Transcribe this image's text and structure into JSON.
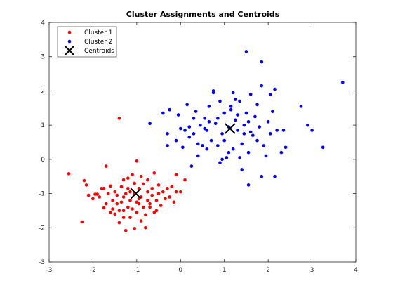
{
  "chart_data": {
    "type": "scatter",
    "title": "Cluster Assignments and Centroids",
    "xlim": [
      -3,
      4
    ],
    "ylim": [
      -3,
      4
    ],
    "x_ticks": [
      -3,
      -2,
      -1,
      0,
      1,
      2,
      3,
      4
    ],
    "y_ticks": [
      -3,
      -2,
      -1,
      0,
      1,
      2,
      3,
      4
    ],
    "grid": false,
    "legend_position": "top-left",
    "series": [
      {
        "name": "Cluster 1",
        "color": "#ff0000",
        "marker": "dot",
        "points": [
          [
            -2.55,
            -0.42
          ],
          [
            -2.25,
            -1.83
          ],
          [
            -2.2,
            -0.62
          ],
          [
            -2.15,
            -0.75
          ],
          [
            -2.1,
            -1.05
          ],
          [
            -2.0,
            -1.15
          ],
          [
            -1.9,
            -1.02
          ],
          [
            -1.85,
            -1.1
          ],
          [
            -1.8,
            -0.85
          ],
          [
            -1.75,
            -0.85
          ],
          [
            -1.7,
            -1.3
          ],
          [
            -1.7,
            -0.2
          ],
          [
            -1.65,
            -1.0
          ],
          [
            -1.6,
            -1.55
          ],
          [
            -1.55,
            -1.45
          ],
          [
            -1.5,
            -0.95
          ],
          [
            -1.5,
            -1.6
          ],
          [
            -1.45,
            -1.3
          ],
          [
            -1.4,
            -1.5
          ],
          [
            -1.4,
            -1.85
          ],
          [
            -1.35,
            -1.25
          ],
          [
            -1.3,
            -1.1
          ],
          [
            -1.3,
            -0.6
          ],
          [
            -1.3,
            -1.5
          ],
          [
            -1.25,
            -2.08
          ],
          [
            -1.2,
            -0.85
          ],
          [
            -1.2,
            -0.55
          ],
          [
            -1.15,
            -1.7
          ],
          [
            -1.15,
            -1.2
          ],
          [
            -1.1,
            -0.45
          ],
          [
            -1.1,
            -1.45
          ],
          [
            -1.05,
            -2.02
          ],
          [
            -1.05,
            -1.0
          ],
          [
            -1.0,
            -1.25
          ],
          [
            -1.0,
            -1.55
          ],
          [
            -1.0,
            -0.05
          ],
          [
            -0.95,
            -1.3
          ],
          [
            -0.95,
            -0.85
          ],
          [
            -0.9,
            -1.1
          ],
          [
            -0.9,
            -0.5
          ],
          [
            -0.85,
            -0.72
          ],
          [
            -0.85,
            -1.4
          ],
          [
            -0.8,
            -1.62
          ],
          [
            -0.8,
            -2.0
          ],
          [
            -0.75,
            -1.2
          ],
          [
            -0.75,
            -0.95
          ],
          [
            -0.7,
            -1.3
          ],
          [
            -0.65,
            -0.85
          ],
          [
            -0.65,
            -1.05
          ],
          [
            -0.6,
            -1.55
          ],
          [
            -0.6,
            -0.4
          ],
          [
            -0.55,
            -1.2
          ],
          [
            -0.55,
            -1.5
          ],
          [
            -0.5,
            -1.0
          ],
          [
            -0.5,
            -0.75
          ],
          [
            -0.45,
            -1.35
          ],
          [
            -0.4,
            -0.95
          ],
          [
            -0.35,
            -1.15
          ],
          [
            -0.3,
            -0.85
          ],
          [
            -0.25,
            -1.1
          ],
          [
            -0.2,
            -0.8
          ],
          [
            -0.15,
            -1.25
          ],
          [
            -0.1,
            -0.95
          ],
          [
            -0.1,
            -0.45
          ],
          [
            0.0,
            -0.95
          ],
          [
            0.1,
            -0.6
          ],
          [
            -1.2,
            -1.4
          ],
          [
            -1.25,
            -1.0
          ],
          [
            -1.35,
            -0.8
          ],
          [
            -1.45,
            -1.05
          ],
          [
            -1.55,
            -1.2
          ],
          [
            -1.6,
            -0.78
          ],
          [
            -1.15,
            -0.95
          ],
          [
            -1.05,
            -0.7
          ],
          [
            -0.95,
            -1.15
          ],
          [
            -0.7,
            -1.4
          ],
          [
            -0.75,
            -0.6
          ],
          [
            -1.3,
            -1.7
          ],
          [
            -0.9,
            -1.8
          ],
          [
            -1.4,
            1.2
          ],
          [
            -1.75,
            -1.42
          ],
          [
            -1.95,
            -1.02
          ]
        ]
      },
      {
        "name": "Cluster 2",
        "color": "#0000ff",
        "marker": "dot",
        "points": [
          [
            -0.7,
            1.05
          ],
          [
            -0.4,
            1.35
          ],
          [
            -0.3,
            0.75
          ],
          [
            -0.25,
            1.45
          ],
          [
            -0.1,
            0.55
          ],
          [
            -0.05,
            1.3
          ],
          [
            0.0,
            0.9
          ],
          [
            0.05,
            0.35
          ],
          [
            0.1,
            0.85
          ],
          [
            0.15,
            1.6
          ],
          [
            0.2,
            0.95
          ],
          [
            0.25,
            -0.2
          ],
          [
            0.3,
            0.75
          ],
          [
            0.35,
            1.4
          ],
          [
            0.4,
            0.1
          ],
          [
            0.45,
            1.0
          ],
          [
            0.5,
            0.4
          ],
          [
            0.55,
            1.2
          ],
          [
            0.6,
            0.85
          ],
          [
            0.65,
            1.55
          ],
          [
            0.7,
            0.55
          ],
          [
            0.75,
            1.95
          ],
          [
            0.8,
            1.05
          ],
          [
            0.85,
            0.4
          ],
          [
            0.9,
            1.7
          ],
          [
            0.95,
            0.75
          ],
          [
            1.0,
            1.35
          ],
          [
            1.05,
            0.05
          ],
          [
            1.1,
            0.95
          ],
          [
            1.15,
            1.55
          ],
          [
            1.2,
            0.3
          ],
          [
            1.25,
            1.15
          ],
          [
            1.3,
            0.85
          ],
          [
            1.35,
            1.7
          ],
          [
            1.4,
            0.45
          ],
          [
            1.45,
            1.0
          ],
          [
            1.5,
            1.35
          ],
          [
            1.55,
            0.2
          ],
          [
            1.6,
            1.9
          ],
          [
            1.65,
            0.7
          ],
          [
            1.7,
            1.25
          ],
          [
            1.75,
            0.55
          ],
          [
            1.8,
            0.95
          ],
          [
            1.85,
            2.15
          ],
          [
            1.9,
            0.4
          ],
          [
            2.0,
            1.1
          ],
          [
            2.05,
            0.75
          ],
          [
            2.1,
            1.4
          ],
          [
            2.15,
            2.05
          ],
          [
            2.2,
            0.85
          ],
          [
            2.3,
            0.2
          ],
          [
            2.4,
            0.35
          ],
          [
            1.5,
            3.15
          ],
          [
            1.85,
            2.85
          ],
          [
            2.75,
            1.55
          ],
          [
            2.9,
            1.0
          ],
          [
            3.0,
            0.85
          ],
          [
            3.25,
            0.35
          ],
          [
            3.7,
            2.25
          ],
          [
            2.15,
            -0.5
          ],
          [
            1.55,
            -0.75
          ],
          [
            1.85,
            -0.5
          ],
          [
            1.4,
            -0.3
          ],
          [
            0.9,
            -0.1
          ],
          [
            0.55,
            0.9
          ],
          [
            0.75,
            2.0
          ],
          [
            1.2,
            1.95
          ],
          [
            1.15,
            1.45
          ],
          [
            1.3,
            1.3
          ],
          [
            1.45,
            0.75
          ],
          [
            1.35,
            0.05
          ],
          [
            1.6,
            0.8
          ],
          [
            1.0,
            0.55
          ],
          [
            0.65,
            1.1
          ],
          [
            0.4,
            0.45
          ],
          [
            0.85,
            1.2
          ],
          [
            1.75,
            1.6
          ],
          [
            2.05,
            1.9
          ],
          [
            1.95,
            0.1
          ],
          [
            0.3,
            1.2
          ],
          [
            0.2,
            0.65
          ],
          [
            -0.3,
            0.4
          ],
          [
            0.6,
            0.3
          ],
          [
            1.1,
            0.2
          ],
          [
            1.25,
            1.75
          ],
          [
            2.35,
            0.85
          ],
          [
            1.55,
            1.1
          ],
          [
            0.95,
            0.0
          ]
        ]
      },
      {
        "name": "Centroids",
        "color": "#000000",
        "marker": "x",
        "points": [
          [
            -1.02,
            -1.0
          ],
          [
            1.13,
            0.9
          ]
        ]
      }
    ]
  }
}
